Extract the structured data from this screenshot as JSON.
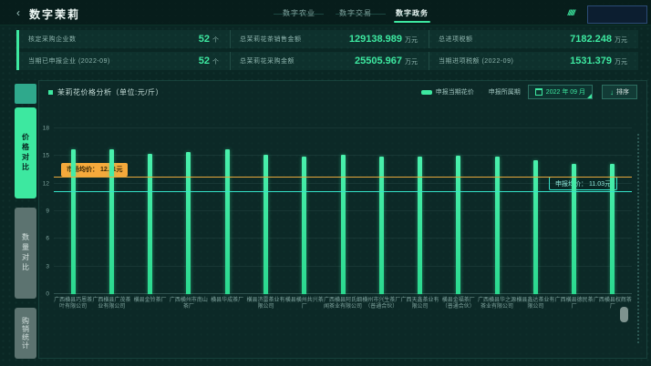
{
  "topbar": {
    "back_icon": "‹",
    "title": "数字茉莉",
    "tabs": [
      {
        "label": "数字农业",
        "active": false
      },
      {
        "label": "数字交易",
        "active": false
      },
      {
        "label": "数字政务",
        "active": true
      }
    ],
    "slashes": "/////"
  },
  "stats": {
    "cells": [
      {
        "label": "核定采购企业数",
        "value": "52",
        "unit": "个"
      },
      {
        "label": "总茉莉花茶销售金额",
        "value": "129138.989",
        "unit": "万元"
      },
      {
        "label": "总进项税额",
        "value": "7182.248",
        "unit": "万元"
      },
      {
        "label": "当期已申报企业 (2022-09)",
        "value": "52",
        "unit": "个"
      },
      {
        "label": "总茉莉花采购金额",
        "value": "25505.967",
        "unit": "万元"
      },
      {
        "label": "当期进项税额 (2022-09)",
        "value": "1531.379",
        "unit": "万元"
      }
    ]
  },
  "side_tabs": [
    {
      "label": "价格对比",
      "active": true
    },
    {
      "label": "数量对比",
      "active": false
    },
    {
      "label": "购销统计",
      "active": false
    }
  ],
  "chart_header": {
    "title": "茉莉花价格分析（单位:元/斤）",
    "legend_label": "申报当期花价",
    "period_label": "申报所属期",
    "period_value": "2022 年 09 月",
    "sort_arrow": "↓",
    "sort_label": "排序"
  },
  "chart_data": {
    "type": "bar",
    "title": "茉莉花价格分析（单位:元/斤）",
    "ylabel": "元/斤",
    "ylim": [
      0,
      18
    ],
    "yticks": [
      0,
      3,
      6,
      9,
      12,
      15,
      18
    ],
    "legend": [
      "申报当期花价"
    ],
    "legend_position": "top-right",
    "grid": true,
    "bar_color": "#3de8a0",
    "categories": [
      "广西横县巧恩茶叶有限公司",
      "广西横县广茂茶业有限公司",
      "横县金铃茶厂",
      "广西横州市南山茶厂",
      "横县华成茶厂",
      "横县济雷茶业有限公司",
      "横县横州共兴茶厂",
      "广西横县阿氏细闻茶业有限公司",
      "横州市兴生茶厂（普通合伙）",
      "广西天鑫茶业有限公司",
      "横县金福茶厂（普通合伙）",
      "广西横县华之源茶业有限公司",
      "横县鑫达茶业有限公司",
      "广西横县德民茶厂",
      "广西横县权辉茶厂"
    ],
    "values": [
      15.7,
      15.7,
      15.2,
      15.4,
      15.7,
      15.1,
      14.9,
      15.1,
      14.9,
      14.9,
      15.0,
      14.9,
      14.5,
      14.1,
      14.1
    ],
    "reference_lines": [
      {
        "name": "market-average",
        "label": "市场均价：  12.71元",
        "value": 12.71,
        "color": "#e8a93c"
      },
      {
        "name": "declared-average",
        "label": "申报均价：  11.03元",
        "value": 11.03,
        "color": "#35e3c9"
      }
    ]
  },
  "colors": {
    "accent_green": "#3de8a0",
    "background": "#0a2724",
    "market_line": "#e8a93c",
    "declared_line": "#35e3c9",
    "value_text": "#3de8a0"
  }
}
